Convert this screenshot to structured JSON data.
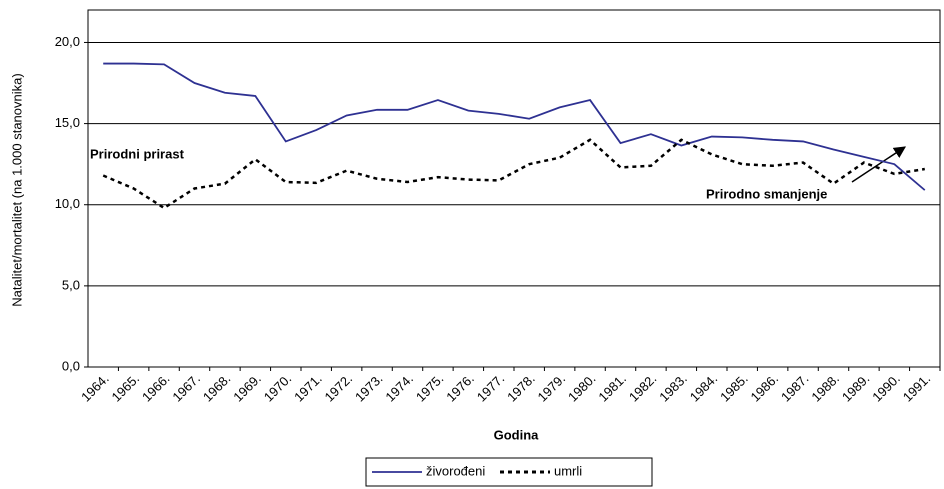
{
  "chart_data": {
    "type": "line",
    "y_label": "Natalitet/mortalitet (na 1.000 stanovnika)",
    "x_label": "Godina",
    "categories": [
      "1964.",
      "1965.",
      "1966.",
      "1967.",
      "1968.",
      "1969.",
      "1970.",
      "1971.",
      "1972.",
      "1973.",
      "1974.",
      "1975.",
      "1976.",
      "1977.",
      "1978.",
      "1979.",
      "1980.",
      "1981.",
      "1982.",
      "1983.",
      "1984.",
      "1985.",
      "1986.",
      "1987.",
      "1988.",
      "1989.",
      "1990.",
      "1991."
    ],
    "series": [
      {
        "name": "živorođeni",
        "color": "#2e3192",
        "dash": false,
        "values": [
          18.7,
          18.7,
          18.65,
          17.5,
          16.9,
          16.7,
          13.9,
          14.6,
          15.5,
          15.85,
          15.85,
          16.45,
          15.8,
          15.6,
          15.3,
          16.0,
          16.45,
          13.8,
          14.35,
          13.65,
          14.2,
          14.15,
          14.0,
          13.9,
          13.4,
          12.95,
          12.5,
          10.9
        ]
      },
      {
        "name": "umrli",
        "color": "#000000",
        "dash": true,
        "values": [
          11.8,
          11.0,
          9.8,
          11.0,
          11.3,
          12.8,
          11.4,
          11.35,
          12.1,
          11.6,
          11.4,
          11.7,
          11.55,
          11.5,
          12.5,
          12.9,
          14.0,
          12.3,
          12.4,
          14.0,
          13.1,
          12.5,
          12.4,
          12.6,
          11.3,
          12.6,
          11.9,
          12.2
        ]
      }
    ],
    "ylim": [
      0,
      22
    ],
    "yticks": [
      {
        "value": 0,
        "label": "0,0"
      },
      {
        "value": 5,
        "label": "5,0"
      },
      {
        "value": 10,
        "label": "10,0"
      },
      {
        "value": 15,
        "label": "15,0"
      },
      {
        "value": 20,
        "label": "20,0"
      }
    ],
    "grid": true,
    "annotations": [
      "Prirodni prirast",
      "Prirodno smanjenje"
    ],
    "legend": "bottom"
  }
}
